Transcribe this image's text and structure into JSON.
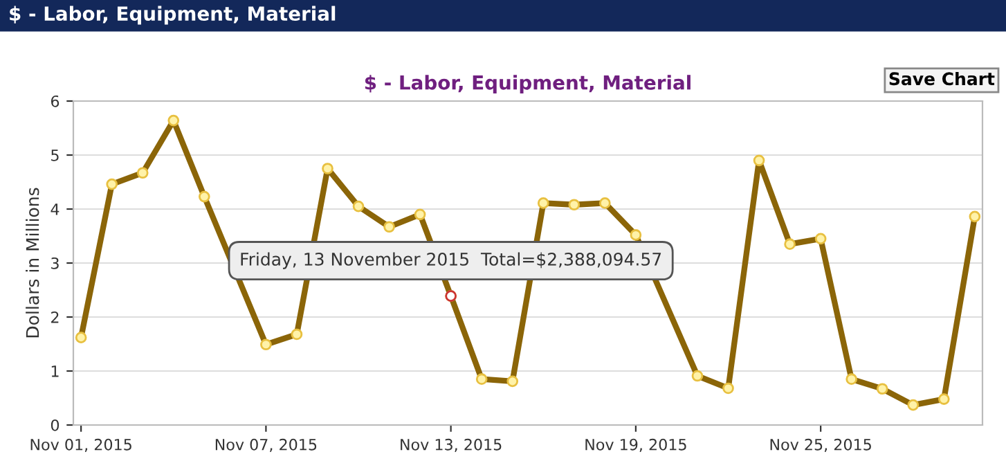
{
  "chart_data": {
    "type": "line",
    "title": "$ - Labor, Equipment, Material",
    "subtitle": "$ - Labor, Equipment, Material",
    "ylabel": "Dollars in Millions",
    "x": [
      "2015-11-01",
      "2015-11-02",
      "2015-11-03",
      "2015-11-04",
      "2015-11-05",
      "2015-11-06",
      "2015-11-07",
      "2015-11-08",
      "2015-11-09",
      "2015-11-10",
      "2015-11-11",
      "2015-11-12",
      "2015-11-13",
      "2015-11-14",
      "2015-11-15",
      "2015-11-16",
      "2015-11-17",
      "2015-11-18",
      "2015-11-19",
      "2015-11-20",
      "2015-11-21",
      "2015-11-22",
      "2015-11-23",
      "2015-11-24",
      "2015-11-25",
      "2015-11-26",
      "2015-11-27",
      "2015-11-28",
      "2015-11-29",
      "2015-11-30"
    ],
    "series": [
      {
        "color": "#8b6508",
        "values": [
          1.62,
          4.46,
          4.67,
          5.64,
          4.23,
          null,
          1.49,
          1.68,
          4.75,
          4.05,
          3.67,
          3.9,
          2.39,
          0.85,
          0.81,
          4.11,
          4.08,
          4.11,
          3.52,
          null,
          0.91,
          0.68,
          4.9,
          3.35,
          3.45,
          0.85,
          0.67,
          0.37,
          0.48,
          3.86
        ]
      }
    ],
    "xlim": [
      "2015-10-31T18:00",
      "2015-11-30T06:00"
    ],
    "xticks": [
      {
        "value": "2015-11-01",
        "label": "Nov 01, 2015"
      },
      {
        "value": "2015-11-07",
        "label": "Nov 07, 2015"
      },
      {
        "value": "2015-11-13",
        "label": "Nov 13, 2015"
      },
      {
        "value": "2015-11-19",
        "label": "Nov 19, 2015"
      },
      {
        "value": "2015-11-25",
        "label": "Nov 25, 2015"
      }
    ],
    "ylim": [
      0,
      6
    ],
    "yticks": [
      0,
      1,
      2,
      3,
      4,
      5,
      6
    ],
    "grid": "y",
    "marker": "circle",
    "line_style": "solid",
    "legend": false,
    "annotations": [
      {
        "text": "Friday, 13 November 2015  Total=$2,388,094.57",
        "x": "2015-11-13",
        "y": 2.39
      },
      "Save Chart"
    ]
  }
}
